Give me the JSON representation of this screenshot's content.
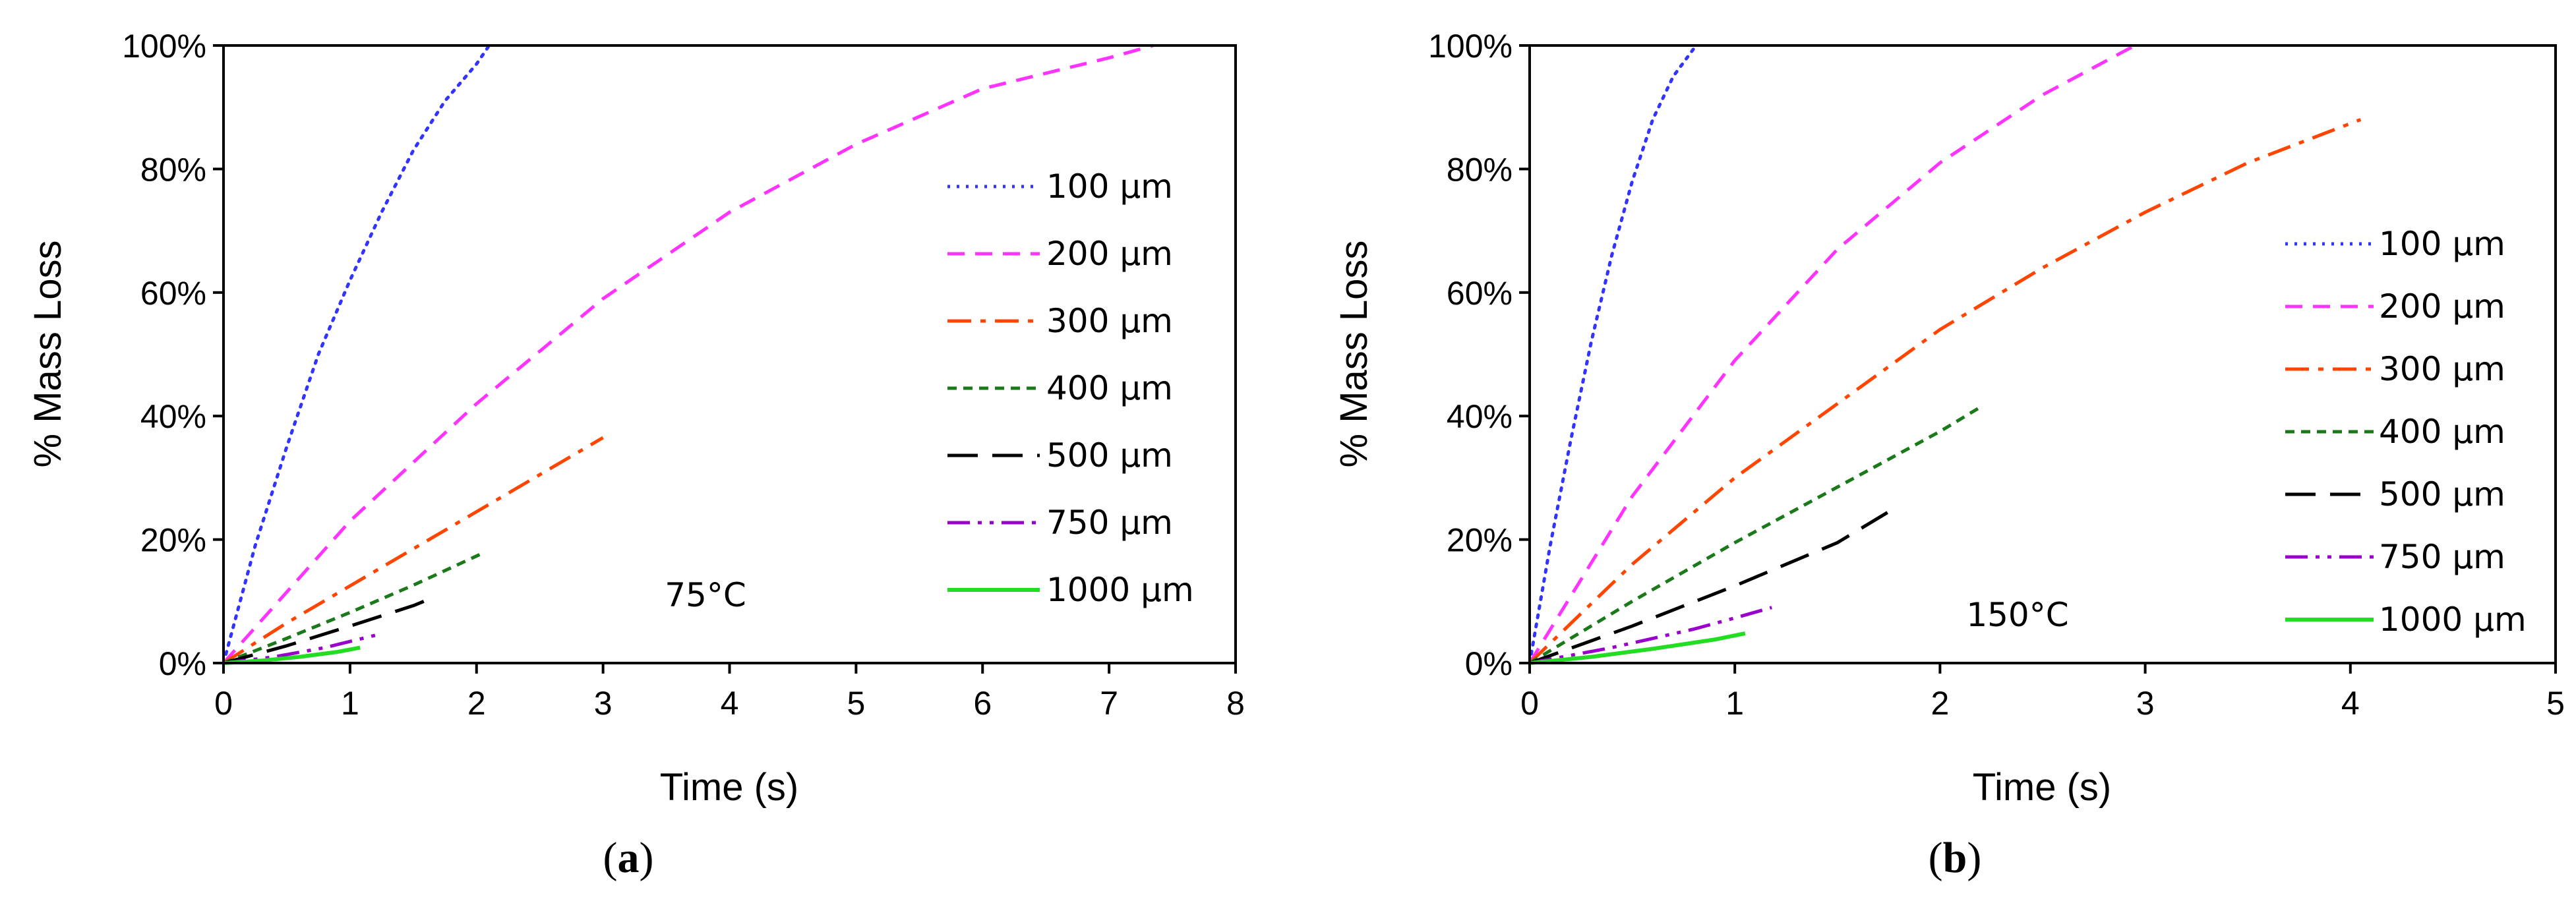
{
  "chart_data": [
    {
      "type": "line",
      "panel": "a",
      "panel_label_open": "(",
      "panel_label_letter": "a",
      "panel_label_close": ")",
      "xlabel": "Time (s)",
      "ylabel": "% Mass Loss",
      "xlim": [
        0,
        8
      ],
      "ylim": [
        0,
        100
      ],
      "xticks": [
        "0",
        "1",
        "2",
        "3",
        "4",
        "5",
        "6",
        "7",
        "8"
      ],
      "yticks": [
        "0%",
        "20%",
        "40%",
        "60%",
        "80%",
        "100%"
      ],
      "annotation": "75°C",
      "legend_position": "right",
      "series": [
        {
          "name": "100 µm",
          "color": "#3333ff",
          "dash": "dotted",
          "x": [
            0,
            0.25,
            0.5,
            0.75,
            1.0,
            1.25,
            1.5,
            1.75,
            2.0,
            2.1
          ],
          "y": [
            0,
            19,
            35,
            50,
            62,
            73,
            83,
            91,
            97,
            100
          ]
        },
        {
          "name": "200 µm",
          "color": "#ff33ff",
          "dash": "dashed",
          "x": [
            0,
            1,
            2,
            3,
            4,
            5,
            6,
            7,
            7.35
          ],
          "y": [
            0,
            23,
            42,
            59,
            73,
            84,
            93,
            98,
            100
          ]
        },
        {
          "name": "300 µm",
          "color": "#ff4500",
          "dash": "dashdot",
          "x": [
            0,
            0.5,
            1,
            1.5,
            2,
            2.5,
            3
          ],
          "y": [
            0,
            6.5,
            12.5,
            18.5,
            24.5,
            30.5,
            36.5
          ]
        },
        {
          "name": "400 µm",
          "color": "#1a7a1a",
          "dash": "shortdash",
          "x": [
            0,
            0.5,
            1,
            1.5,
            2.05
          ],
          "y": [
            0,
            4,
            8.2,
            12.6,
            17.8
          ]
        },
        {
          "name": "500 µm",
          "color": "#000000",
          "dash": "longdash",
          "x": [
            0,
            0.5,
            1,
            1.5,
            1.68
          ],
          "y": [
            0,
            2.8,
            6,
            9.3,
            10.8
          ]
        },
        {
          "name": "750 µm",
          "color": "#9900cc",
          "dash": "dashdotdot",
          "x": [
            0,
            0.4,
            0.8,
            1.2
          ],
          "y": [
            0,
            1,
            2.5,
            4.5
          ]
        },
        {
          "name": "1000 µm",
          "color": "#22dd22",
          "dash": "solid",
          "x": [
            0,
            0.3,
            0.6,
            0.9,
            1.08
          ],
          "y": [
            0,
            0.4,
            1,
            1.8,
            2.5
          ]
        }
      ]
    },
    {
      "type": "line",
      "panel": "b",
      "panel_label_open": "(",
      "panel_label_letter": "b",
      "panel_label_close": ")",
      "xlabel": "Time (s)",
      "ylabel": "% Mass Loss",
      "xlim": [
        0,
        5
      ],
      "ylim": [
        0,
        100
      ],
      "xticks": [
        "0",
        "1",
        "2",
        "3",
        "4",
        "5"
      ],
      "yticks": [
        "0%",
        "20%",
        "40%",
        "60%",
        "80%",
        "100%"
      ],
      "annotation": "150°C",
      "legend_position": "right",
      "series": [
        {
          "name": "100 µm",
          "color": "#3333ff",
          "dash": "dotted",
          "x": [
            0,
            0.1,
            0.2,
            0.3,
            0.4,
            0.5,
            0.6,
            0.7,
            0.8,
            0.82
          ],
          "y": [
            0,
            19,
            36,
            52,
            66,
            78,
            88,
            95,
            99.5,
            100
          ]
        },
        {
          "name": "200 µm",
          "color": "#ff33ff",
          "dash": "dashed",
          "x": [
            0,
            0.5,
            1,
            1.5,
            2,
            2.5,
            2.95
          ],
          "y": [
            0,
            27,
            49,
            67,
            81,
            92,
            100
          ]
        },
        {
          "name": "300 µm",
          "color": "#ff4500",
          "dash": "dashdot",
          "x": [
            0,
            0.5,
            1,
            1.5,
            2,
            2.5,
            3,
            3.5,
            4.05
          ],
          "y": [
            0,
            16,
            30,
            42,
            54,
            64,
            73,
            81,
            88
          ]
        },
        {
          "name": "400 µm",
          "color": "#1a7a1a",
          "dash": "shortdash",
          "x": [
            0,
            0.5,
            1,
            1.5,
            2,
            2.2
          ],
          "y": [
            0,
            10,
            19.5,
            28.5,
            37.5,
            41.5
          ]
        },
        {
          "name": "500 µm",
          "color": "#000000",
          "dash": "longdash",
          "x": [
            0,
            0.5,
            1,
            1.5,
            1.75
          ],
          "y": [
            0,
            6,
            12.5,
            19.5,
            24.5
          ]
        },
        {
          "name": "750 µm",
          "color": "#9900cc",
          "dash": "dashdotdot",
          "x": [
            0,
            0.4,
            0.8,
            1.0,
            1.18
          ],
          "y": [
            0,
            2.5,
            5.5,
            7.3,
            9
          ]
        },
        {
          "name": "1000 µm",
          "color": "#22dd22",
          "dash": "solid",
          "x": [
            0,
            0.3,
            0.6,
            0.9,
            1.05
          ],
          "y": [
            0,
            1,
            2.3,
            3.8,
            4.8
          ]
        }
      ]
    }
  ]
}
